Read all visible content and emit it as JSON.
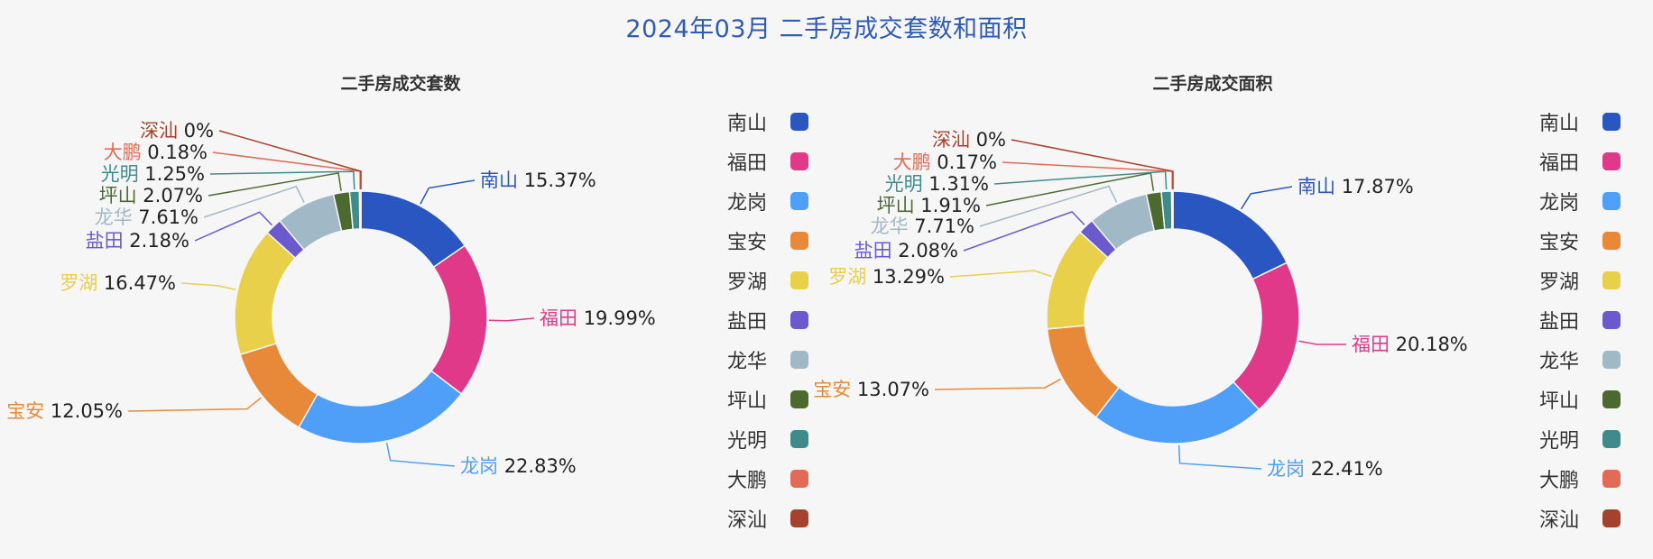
{
  "title": "2024年03月 二手房成交套数和面积",
  "colors": {
    "title": "#2f5bb7",
    "南山": "#2a56c2",
    "福田": "#e0398a",
    "龙岗": "#4f9ef8",
    "宝安": "#e8893a",
    "罗湖": "#e8d04b",
    "盐田": "#6a5acd",
    "龙华": "#a1b9c6",
    "坪山": "#4c6a30",
    "光明": "#3f8b8c",
    "大鹏": "#e06c55",
    "深汕": "#a5422d"
  },
  "legend_items": [
    "南山",
    "福田",
    "龙岗",
    "宝安",
    "罗湖",
    "盐田",
    "龙华",
    "坪山",
    "光明",
    "大鹏",
    "深汕"
  ],
  "chart_data": [
    {
      "type": "pie",
      "title": "二手房成交套数",
      "categories": [
        "南山",
        "福田",
        "龙岗",
        "宝安",
        "罗湖",
        "盐田",
        "龙华",
        "坪山",
        "光明",
        "大鹏",
        "深汕"
      ],
      "values": [
        15.37,
        19.99,
        22.83,
        12.05,
        16.47,
        2.18,
        7.61,
        2.07,
        1.25,
        0.18,
        0
      ],
      "labels": [
        "15.37%",
        "19.99%",
        "22.83%",
        "12.05%",
        "16.47%",
        "2.18%",
        "7.61%",
        "2.07%",
        "1.25%",
        "0.18%",
        "0%"
      ],
      "legend": "right",
      "donut": true
    },
    {
      "type": "pie",
      "title": "二手房成交面积",
      "categories": [
        "南山",
        "福田",
        "龙岗",
        "宝安",
        "罗湖",
        "盐田",
        "龙华",
        "坪山",
        "光明",
        "大鹏",
        "深汕"
      ],
      "values": [
        17.87,
        20.18,
        22.41,
        13.07,
        13.29,
        2.08,
        7.71,
        1.91,
        1.31,
        0.17,
        0
      ],
      "labels": [
        "17.87%",
        "20.18%",
        "22.41%",
        "13.07%",
        "13.29%",
        "2.08%",
        "7.71%",
        "1.91%",
        "1.31%",
        "0.17%",
        "0%"
      ],
      "legend": "right",
      "donut": true
    }
  ]
}
